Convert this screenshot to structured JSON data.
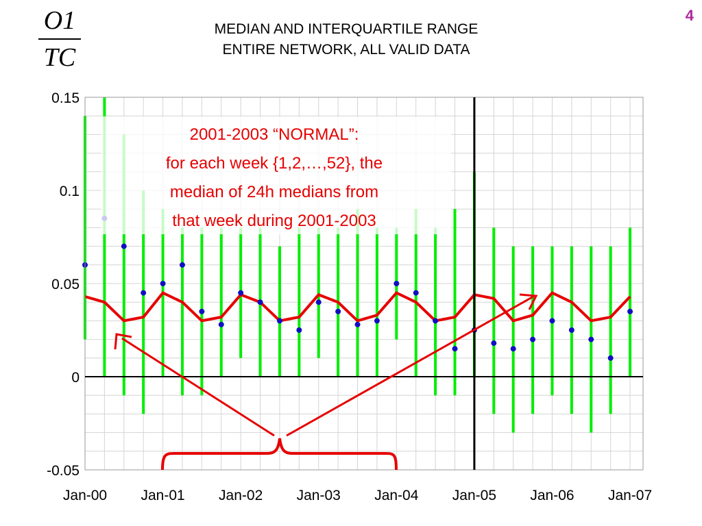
{
  "header": {
    "fraction_numerator": "O1",
    "fraction_denominator": "TC",
    "title_line1": "MEDIAN AND INTERQUARTILE RANGE",
    "title_line2": "ENTIRE NETWORK, ALL VALID DATA",
    "page_number": "4"
  },
  "annotation": {
    "line1": "2001-2003 “NORMAL”:",
    "line2": "for each week {1,2,…,52}, the",
    "line3": "median of 24h medians from",
    "line4": "that week during 2001-2003"
  },
  "colors": {
    "range_band": "#00ee00",
    "normal_line": "#e60000",
    "median_points": "#1010c0",
    "annotation": "#e60000"
  },
  "chart_data": {
    "type": "line",
    "title": "MEDIAN AND INTERQUARTILE RANGE ENTIRE NETWORK, ALL VALID DATA",
    "xlabel": "",
    "ylabel": "O1/TC",
    "xlim": [
      "2000-01",
      "2007-03"
    ],
    "ylim": [
      -0.05,
      0.15
    ],
    "x_tick_labels": [
      "Jan-00",
      "Jan-01",
      "Jan-02",
      "Jan-03",
      "Jan-04",
      "Jan-05",
      "Jan-06",
      "Jan-07"
    ],
    "y_tick_labels": [
      "-0.05",
      "0",
      "0.05",
      "0.1",
      "0.15"
    ],
    "y_ticks": [
      -0.05,
      0,
      0.05,
      0.1,
      0.15
    ],
    "grid": true,
    "vertical_marker": "2005-01",
    "series": [
      {
        "key": "iqr",
        "kind": "range",
        "x": [
          "2000-01",
          "2000-04",
          "2000-07",
          "2000-10",
          "2001-01",
          "2001-04",
          "2001-07",
          "2001-10",
          "2002-01",
          "2002-04",
          "2002-07",
          "2002-10",
          "2003-01",
          "2003-04",
          "2003-07",
          "2003-10",
          "2004-01",
          "2004-04",
          "2004-07",
          "2004-10",
          "2005-01",
          "2005-04",
          "2005-07",
          "2005-10",
          "2006-01",
          "2006-04",
          "2006-07",
          "2006-10",
          "2007-01"
        ],
        "low": [
          0.02,
          0.0,
          -0.01,
          -0.02,
          0.0,
          -0.01,
          -0.01,
          0.0,
          0.01,
          0.0,
          0.0,
          0.0,
          0.01,
          0.0,
          0.0,
          0.0,
          0.02,
          0.0,
          -0.01,
          -0.01,
          0.0,
          -0.02,
          -0.03,
          -0.02,
          -0.01,
          -0.02,
          -0.03,
          -0.02,
          0.0
        ],
        "high": [
          0.14,
          0.15,
          0.13,
          0.1,
          0.09,
          0.08,
          0.08,
          0.08,
          0.08,
          0.08,
          0.07,
          0.08,
          0.08,
          0.08,
          0.09,
          0.08,
          0.08,
          0.09,
          0.08,
          0.09,
          0.11,
          0.08,
          0.07,
          0.07,
          0.07,
          0.07,
          0.07,
          0.07,
          0.08
        ]
      },
      {
        "key": "normal",
        "kind": "line",
        "x": [
          "2000-01",
          "2000-04",
          "2000-07",
          "2000-10",
          "2001-01",
          "2001-04",
          "2001-07",
          "2001-10",
          "2002-01",
          "2002-04",
          "2002-07",
          "2002-10",
          "2003-01",
          "2003-04",
          "2003-07",
          "2003-10",
          "2004-01",
          "2004-04",
          "2004-07",
          "2004-10",
          "2005-01",
          "2005-04",
          "2005-07",
          "2005-10",
          "2006-01",
          "2006-04",
          "2006-07",
          "2006-10",
          "2007-01"
        ],
        "values": [
          0.043,
          0.04,
          0.03,
          0.032,
          0.045,
          0.04,
          0.03,
          0.032,
          0.044,
          0.04,
          0.03,
          0.032,
          0.044,
          0.04,
          0.03,
          0.033,
          0.045,
          0.04,
          0.03,
          0.032,
          0.044,
          0.042,
          0.03,
          0.033,
          0.045,
          0.04,
          0.03,
          0.032,
          0.043
        ]
      },
      {
        "key": "median",
        "kind": "points",
        "x": [
          "2000-01",
          "2000-04",
          "2000-07",
          "2000-10",
          "2001-01",
          "2001-04",
          "2001-07",
          "2001-10",
          "2002-01",
          "2002-04",
          "2002-07",
          "2002-10",
          "2003-01",
          "2003-04",
          "2003-07",
          "2003-10",
          "2004-01",
          "2004-04",
          "2004-07",
          "2004-10",
          "2005-01",
          "2005-04",
          "2005-07",
          "2005-10",
          "2006-01",
          "2006-04",
          "2006-07",
          "2006-10",
          "2007-01"
        ],
        "values": [
          0.06,
          0.085,
          0.07,
          0.045,
          0.05,
          0.06,
          0.035,
          0.028,
          0.045,
          0.04,
          0.03,
          0.025,
          0.04,
          0.035,
          0.028,
          0.03,
          0.05,
          0.045,
          0.03,
          0.015,
          0.025,
          0.018,
          0.015,
          0.02,
          0.03,
          0.025,
          0.02,
          0.01,
          0.035
        ]
      }
    ]
  }
}
